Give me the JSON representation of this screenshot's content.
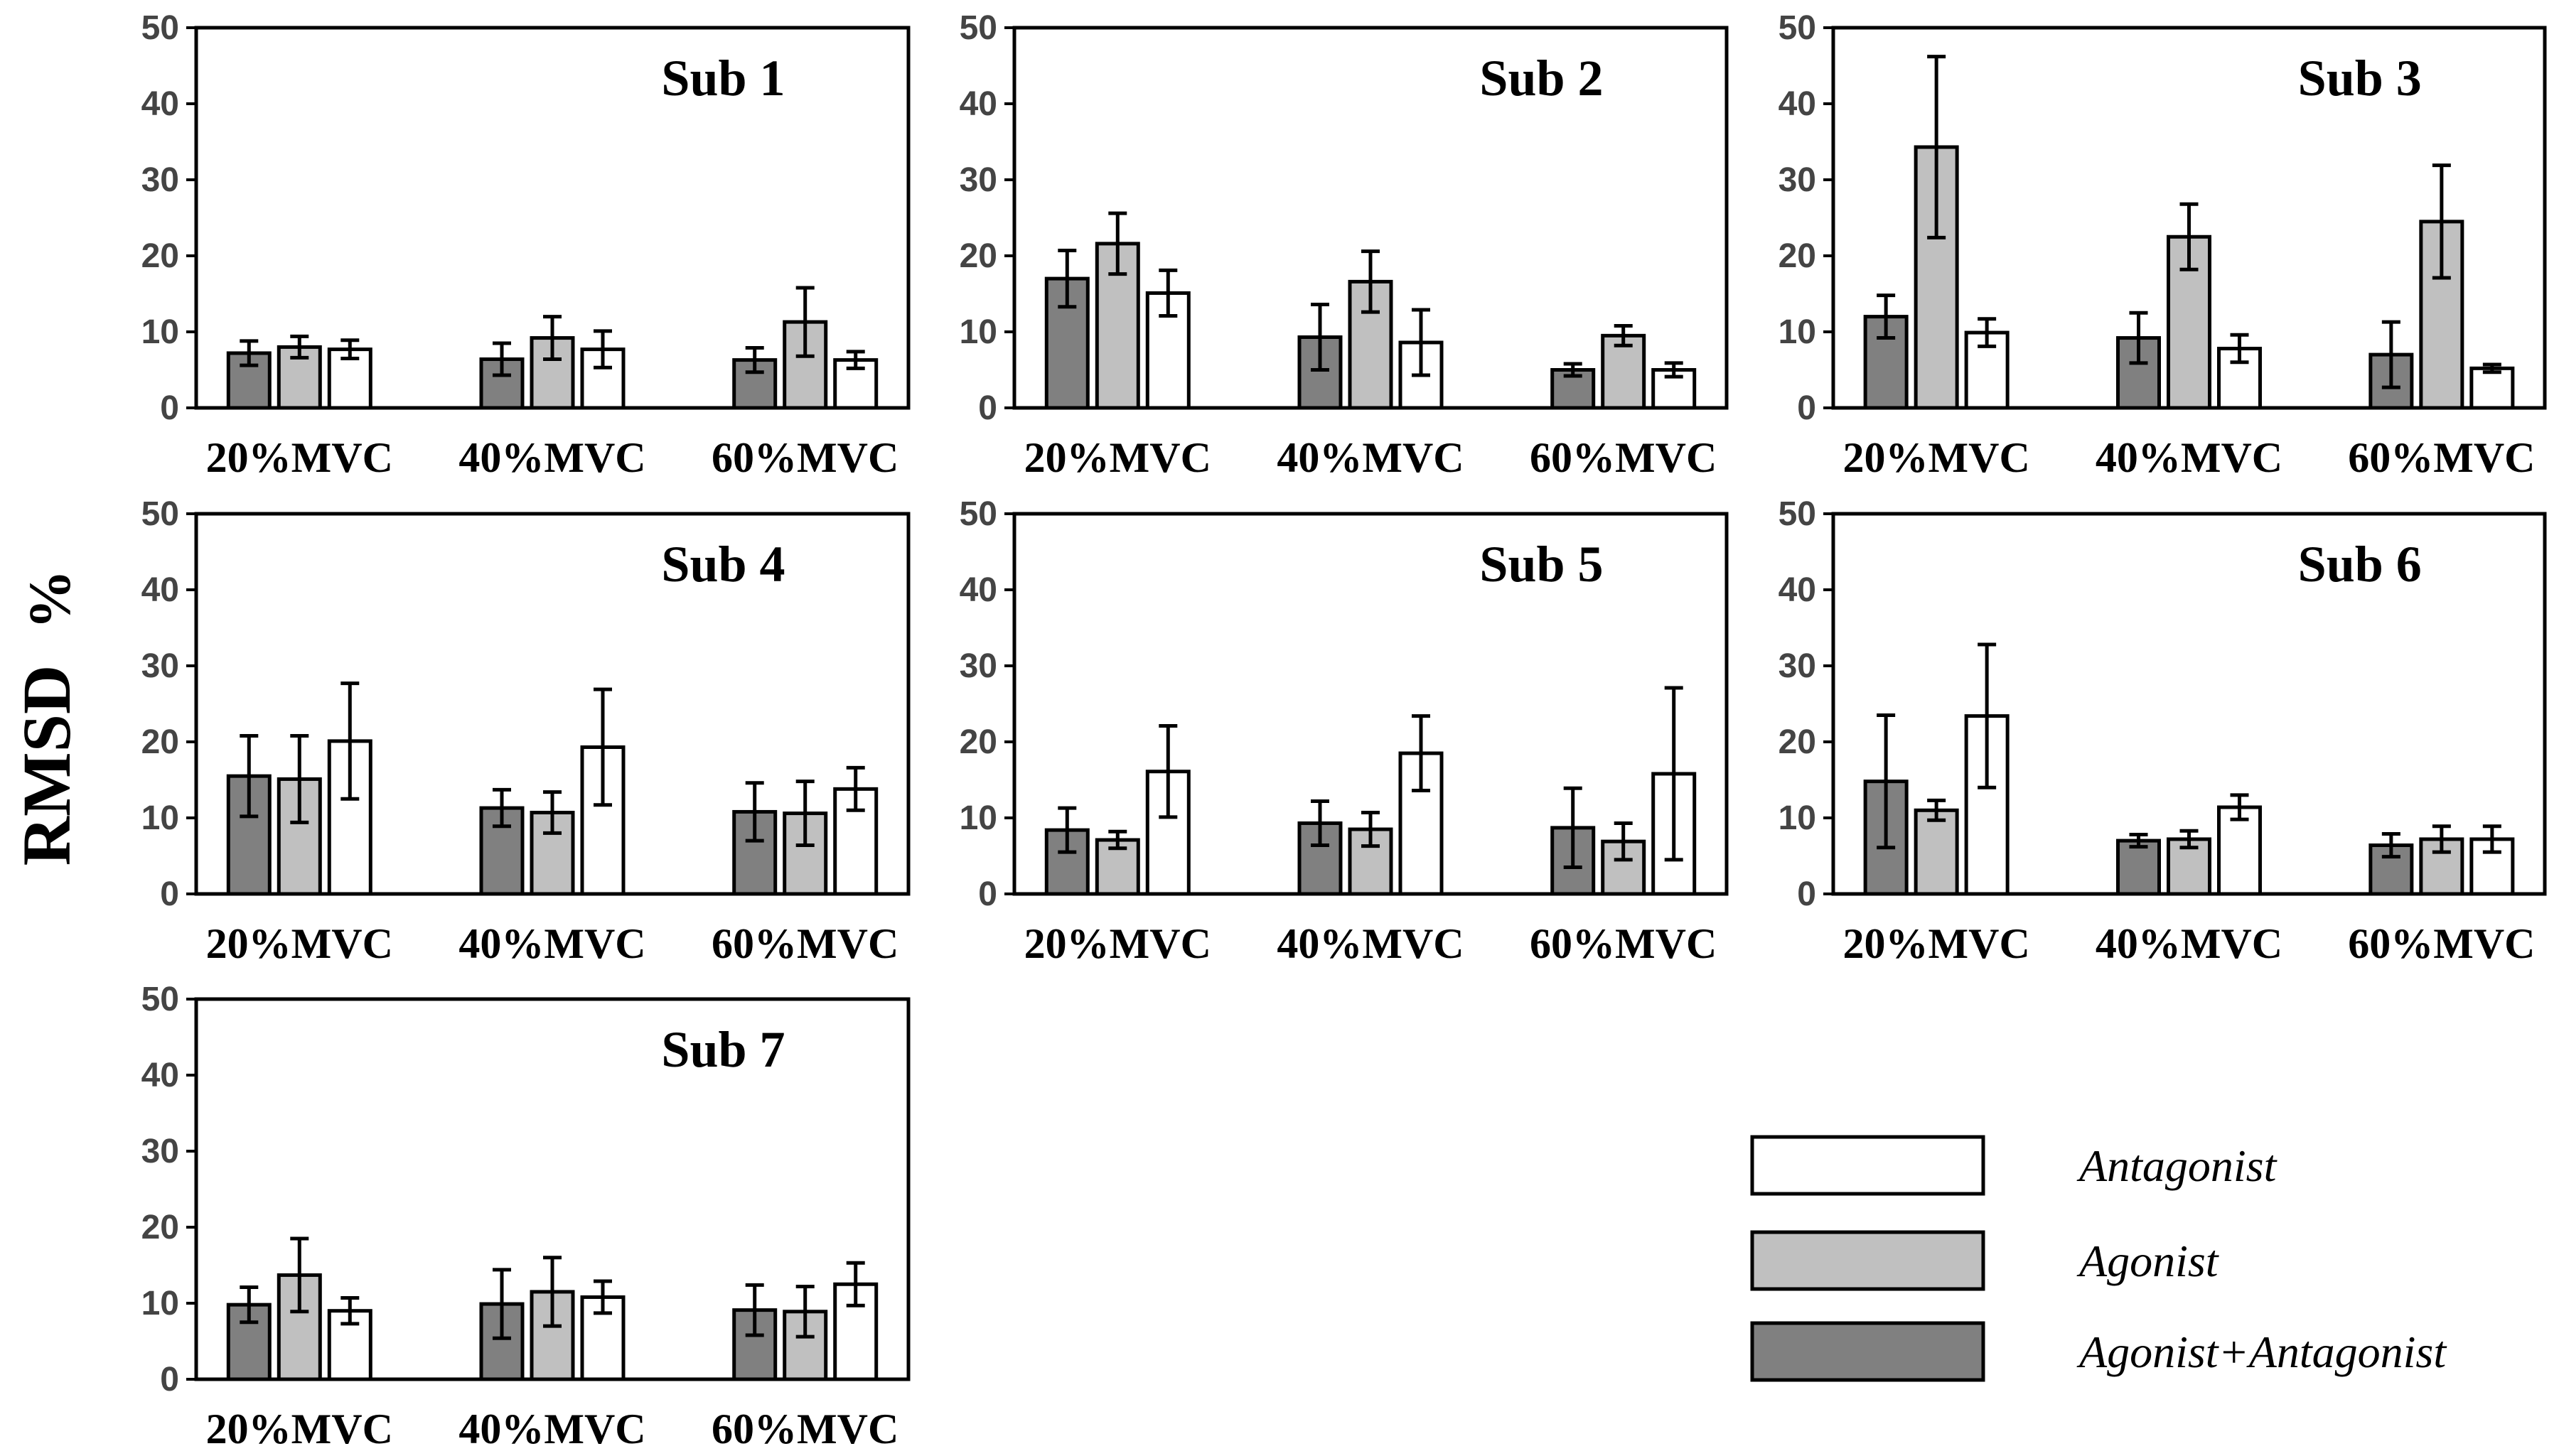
{
  "chart_data": {
    "type": "bar",
    "y_axis_label": "RMSD",
    "y_axis_unit": "%",
    "ylim": [
      0,
      50
    ],
    "yticks": [
      0,
      10,
      20,
      30,
      40,
      50
    ],
    "categories": [
      "20%MVC",
      "40%MVC",
      "60%MVC"
    ],
    "series_order": [
      "Agonist+Antagonist",
      "Agonist",
      "Antagonist"
    ],
    "colors": {
      "Agonist+Antagonist": "#808080",
      "Agonist": "#c0c0c0",
      "Antagonist": "#ffffff",
      "stroke": "#000000",
      "tick_text": "#444444"
    },
    "legend": [
      {
        "name": "Antagonist",
        "label": "Antagonist"
      },
      {
        "name": "Agonist",
        "label": "Agonist"
      },
      {
        "name": "Agonist+Antagonist",
        "label": "Agonist+Antagonist"
      }
    ],
    "panels": [
      {
        "title": "Sub 1",
        "series": [
          {
            "name": "Agonist+Antagonist",
            "values": [
              7.2,
              6.4,
              6.3
            ],
            "errors": [
              1.6,
              2.1,
              1.6
            ]
          },
          {
            "name": "Agonist",
            "values": [
              8.0,
              9.2,
              11.3
            ],
            "errors": [
              1.4,
              2.8,
              4.5
            ]
          },
          {
            "name": "Antagonist",
            "values": [
              7.7,
              7.7,
              6.3
            ],
            "errors": [
              1.2,
              2.4,
              1.1
            ]
          }
        ]
      },
      {
        "title": "Sub 2",
        "series": [
          {
            "name": "Agonist+Antagonist",
            "values": [
              17.0,
              9.3,
              5.0
            ],
            "errors": [
              3.7,
              4.3,
              0.8
            ]
          },
          {
            "name": "Agonist",
            "values": [
              21.6,
              16.6,
              9.5
            ],
            "errors": [
              4.0,
              4.0,
              1.3
            ]
          },
          {
            "name": "Antagonist",
            "values": [
              15.1,
              8.6,
              5.0
            ],
            "errors": [
              3.0,
              4.3,
              0.9
            ]
          }
        ]
      },
      {
        "title": "Sub 3",
        "series": [
          {
            "name": "Agonist+Antagonist",
            "values": [
              12.0,
              9.2,
              7.0
            ],
            "errors": [
              2.8,
              3.3,
              4.3
            ]
          },
          {
            "name": "Agonist",
            "values": [
              34.3,
              22.5,
              24.5
            ],
            "errors": [
              11.9,
              4.3,
              7.4
            ]
          },
          {
            "name": "Antagonist",
            "values": [
              9.9,
              7.8,
              5.2
            ],
            "errors": [
              1.8,
              1.8,
              0.5
            ]
          }
        ]
      },
      {
        "title": "Sub 4",
        "series": [
          {
            "name": "Agonist+Antagonist",
            "values": [
              15.5,
              11.3,
              10.8
            ],
            "errors": [
              5.3,
              2.4,
              3.8
            ]
          },
          {
            "name": "Agonist",
            "values": [
              15.1,
              10.7,
              10.6
            ],
            "errors": [
              5.7,
              2.7,
              4.2
            ]
          },
          {
            "name": "Antagonist",
            "values": [
              20.1,
              19.3,
              13.8
            ],
            "errors": [
              7.6,
              7.6,
              2.8
            ]
          }
        ]
      },
      {
        "title": "Sub 5",
        "series": [
          {
            "name": "Agonist+Antagonist",
            "values": [
              8.4,
              9.3,
              8.7
            ],
            "errors": [
              2.9,
              2.9,
              5.2
            ]
          },
          {
            "name": "Agonist",
            "values": [
              7.1,
              8.5,
              6.9
            ],
            "errors": [
              1.1,
              2.2,
              2.4
            ]
          },
          {
            "name": "Antagonist",
            "values": [
              16.1,
              18.5,
              15.8
            ],
            "errors": [
              6.0,
              4.9,
              11.3
            ]
          }
        ]
      },
      {
        "title": "Sub 6",
        "series": [
          {
            "name": "Agonist+Antagonist",
            "values": [
              14.8,
              7.0,
              6.4
            ],
            "errors": [
              8.7,
              0.8,
              1.5
            ]
          },
          {
            "name": "Agonist",
            "values": [
              11.0,
              7.2,
              7.2
            ],
            "errors": [
              1.3,
              1.1,
              1.7
            ]
          },
          {
            "name": "Antagonist",
            "values": [
              23.4,
              11.4,
              7.2
            ],
            "errors": [
              9.4,
              1.6,
              1.7
            ]
          }
        ]
      },
      {
        "title": "Sub 7",
        "series": [
          {
            "name": "Agonist+Antagonist",
            "values": [
              9.8,
              9.9,
              9.1
            ],
            "errors": [
              2.3,
              4.5,
              3.3
            ]
          },
          {
            "name": "Agonist",
            "values": [
              13.7,
              11.5,
              8.9
            ],
            "errors": [
              4.8,
              4.5,
              3.3
            ]
          },
          {
            "name": "Antagonist",
            "values": [
              9.0,
              10.8,
              12.5
            ],
            "errors": [
              1.7,
              2.1,
              2.8
            ]
          }
        ]
      }
    ]
  }
}
